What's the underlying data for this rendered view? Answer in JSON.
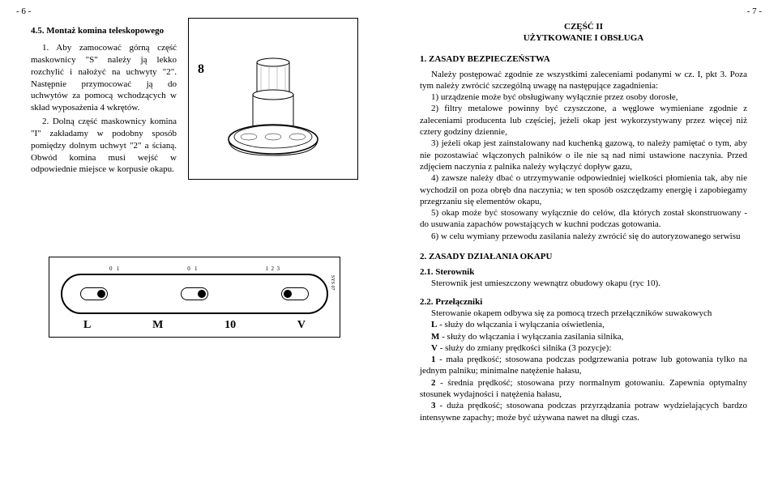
{
  "left": {
    "pageNum": "- 6 -",
    "heading": "4.5. Montaż komina teleskopowego",
    "p1": "1. Aby zamocować górną część maskownicy \"S\" należy ją lekko rozchylić i nałożyć na uchwyty \"2\". Następnie przymocować ją do uchwytów za pomocą wchodzących w skład wyposażenia 4 wkrętów.",
    "p2": "2. Dolną część maskownicy komina \"I\" zakładamy w podobny sposób pomiędzy dolnym uchwyt \"2\" a ścianą. Obwód komina musi wejść w odpowiednie miejsce w korpusie okapu.",
    "fig8label": "8",
    "switchLabels01": [
      "0",
      "1"
    ],
    "switchLabels123": [
      "1",
      "2",
      "3"
    ],
    "bottomL": "L",
    "bottomM": "M",
    "bottom10": "10",
    "bottomV": "V",
    "sys": "SYS 07"
  },
  "right": {
    "pageNum": "- 7 -",
    "title1": "CZĘŚĆ II",
    "title2": "UŻYTKOWANIE I OBSŁUGA",
    "h1": "1. ZASADY BEZPIECZEŃSTWA",
    "intro": "Należy postępować zgodnie ze wszystkimi zaleceniami podanymi w cz. I, pkt 3. Poza tym należy zwrócić szczególną uwagę na następujące zagadnienia:",
    "b1": "1) urządzenie może być obsługiwany wyłącznie przez osoby dorosłe,",
    "b2": "2) filtry metalowe powinny być czyszczone, a węglowe wymieniane zgodnie z zaleceniami producenta lub częściej, jeżeli okap jest wykorzystywany przez więcej niż cztery godziny dziennie,",
    "b3": "3) jeżeli okap jest zainstalowany nad kuchenką gazową, to należy pamiętać o tym, aby nie pozostawiać włączonych palników o ile nie są nad nimi ustawione naczynia. Przed zdjęciem naczynia z palnika należy wyłączyć dopływ gazu,",
    "b4": "4) zawsze należy dbać o utrzymywanie odpowiedniej wielkości płomienia tak, aby nie wychodził on poza obręb dna naczynia; w ten sposób oszczędzamy energię i zapobiegamy przegrzaniu się elementów okapu,",
    "b5": "5) okap może być stosowany wyłącznie do celów, dla których został skonstruowany - do usuwania zapachów powstających w kuchni podczas gotowania.",
    "b6": "6) w celu wymiany przewodu zasilania należy zwrócić się do autoryzowanego serwisu",
    "h2": "2. ZASADY DZIAŁANIA OKAPU",
    "h21": "2.1. Sterownik",
    "t21": "Sterownik jest umieszczony wewnątrz obudowy okapu (ryc 10).",
    "h22": "2.2. Przełączniki",
    "t22intro": "Sterowanie okapem odbywa się za pomocą trzech przełączników suwakowych",
    "tL": "L - służy do włączania i wyłączania oświetlenia,",
    "tM": "M - służy do włączania i wyłączania zasilania silnika,",
    "tV": "V - służy do zmiany prędkości silnika (3 pozycje):",
    "t1": "1 - mała prędkość; stosowana podczas podgrzewania potraw lub gotowania tylko na jednym palniku; minimalne natężenie hałasu,",
    "t2": "2 - średnia prędkość; stosowana przy normalnym gotowaniu. Zapewnia optymalny stosunek wydajności i natężenia hałasu,",
    "t3": "3 - duża prędkość; stosowana podczas przyrządzania potraw wydzielających bardzo intensywne zapachy; może być używana nawet na długi czas."
  }
}
